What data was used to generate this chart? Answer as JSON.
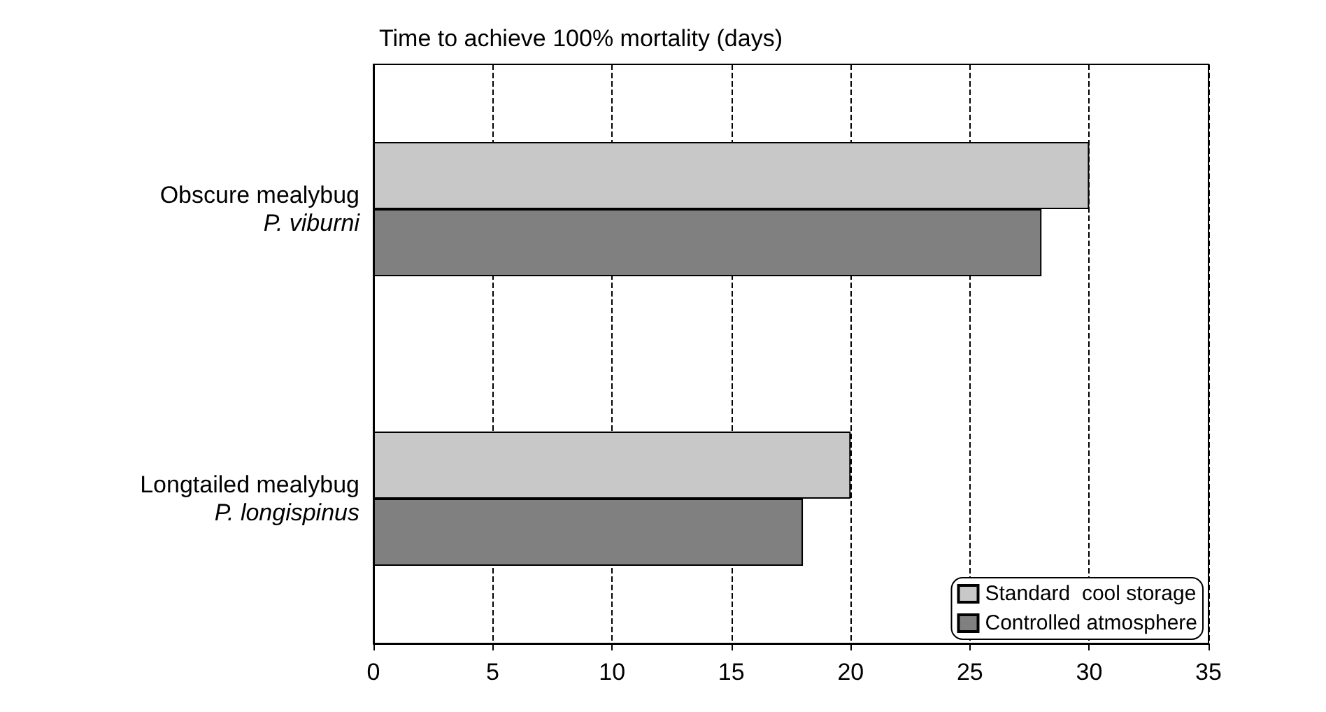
{
  "chart_data": {
    "type": "bar",
    "orientation": "horizontal",
    "title": "Time to achieve 100% mortality (days)",
    "categories": [
      "Obscure mealybug\nP. viburni",
      "Longtailed mealybug\nP. longispinus"
    ],
    "series": [
      {
        "name": "Standard  cool storage",
        "color": "#c8c8c8",
        "values": [
          30,
          20
        ]
      },
      {
        "name": "Controlled atmosphere",
        "color": "#808080",
        "values": [
          28,
          18
        ]
      }
    ],
    "xlim": [
      0,
      35
    ],
    "xticks": [
      0,
      5,
      10,
      15,
      20,
      25,
      30,
      35
    ],
    "grid": "x",
    "legend": "bottom right"
  }
}
